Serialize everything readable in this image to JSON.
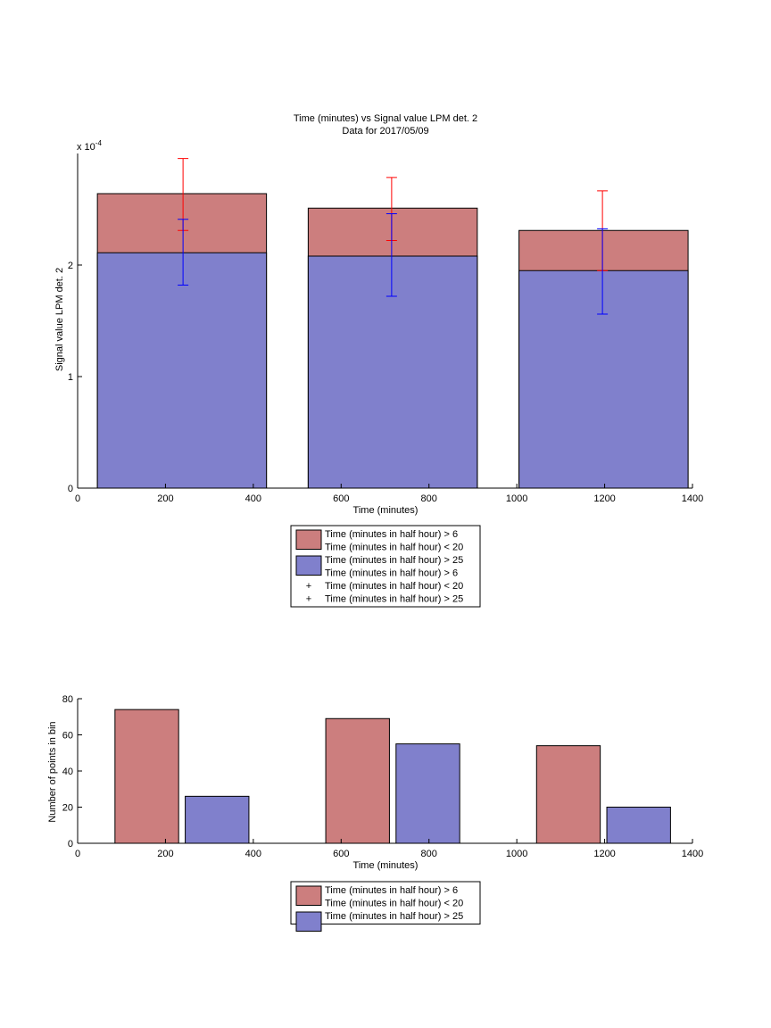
{
  "chart_data": [
    {
      "type": "bar",
      "title": "Time (minutes) vs Signal value LPM det. 2",
      "subtitle": "Data for 2017/05/09",
      "xlabel": "Time (minutes)",
      "ylabel": "Signal value LPM det. 2",
      "exponent_label": "x 10",
      "exponent_power": "-4",
      "xlim": [
        0,
        1400
      ],
      "ylim": [
        0,
        0.0003
      ],
      "xticks": [
        "0",
        "200",
        "400",
        "600",
        "800",
        "1000",
        "1200",
        "1400"
      ],
      "yticks": [
        "0",
        "1",
        "2"
      ],
      "bins": [
        {
          "x_start": 45,
          "x_end": 430
        },
        {
          "x_start": 525,
          "x_end": 910
        },
        {
          "x_start": 1005,
          "x_end": 1390
        }
      ],
      "series": [
        {
          "name": "Time (minutes in half hour) > 6\nTime (minutes in half hour) < 20",
          "color": "#cc7e7e",
          "values": [
            0.000264,
            0.000251,
            0.000231
          ],
          "error_x": [
            240,
            715,
            1195
          ],
          "error_center": [
            0.000231,
            0.000222,
            0.000195
          ],
          "error_plus": [
            6.45e-05,
            5.65e-05,
            7.15e-05
          ],
          "error_minus": [
            0,
            0,
            0
          ],
          "error_color": "#ff0000"
        },
        {
          "name": "Time (minutes in half hour) > 25",
          "color": "#8080cc",
          "values": [
            0.000211,
            0.000208,
            0.000195
          ],
          "error_x": [
            240,
            715,
            1195
          ],
          "error_center": [
            0.000211,
            0.000208,
            0.000195
          ],
          "error_plus": [
            3e-05,
            3.8e-05,
            3.75e-05
          ],
          "error_minus": [
            2.9e-05,
            3.6e-05,
            3.9e-05
          ],
          "error_color": "#0000ff"
        }
      ],
      "legend": [
        {
          "kind": "patch",
          "color": "#cc7e7e",
          "label": "Time (minutes in half hour) > 6"
        },
        {
          "kind": "none",
          "label": "Time (minutes in half hour) < 20"
        },
        {
          "kind": "patch",
          "color": "#8080cc",
          "label": "Time (minutes in half hour) > 25"
        },
        {
          "kind": "none",
          "label": "Time (minutes in half hour) > 6"
        },
        {
          "kind": "marker",
          "color": "#ff0000",
          "label": "Time (minutes in half hour) < 20"
        },
        {
          "kind": "marker",
          "color": "#0000ff",
          "label": "Time (minutes in half hour) > 25"
        }
      ],
      "legend_position": "below"
    },
    {
      "type": "bar",
      "xlabel": "Time (minutes)",
      "ylabel": "Number of points in bin",
      "xlim": [
        0,
        1400
      ],
      "ylim": [
        0,
        80
      ],
      "xticks": [
        "0",
        "200",
        "400",
        "600",
        "800",
        "1000",
        "1200",
        "1400"
      ],
      "yticks": [
        "0",
        "20",
        "40",
        "60",
        "80"
      ],
      "bars": [
        {
          "x_start": 85,
          "x_end": 230,
          "value": 74,
          "series": 0
        },
        {
          "x_start": 245,
          "x_end": 390,
          "value": 26,
          "series": 1
        },
        {
          "x_start": 565,
          "x_end": 710,
          "value": 69,
          "series": 0
        },
        {
          "x_start": 725,
          "x_end": 870,
          "value": 55,
          "series": 1
        },
        {
          "x_start": 1045,
          "x_end": 1190,
          "value": 54,
          "series": 0
        },
        {
          "x_start": 1205,
          "x_end": 1350,
          "value": 20,
          "series": 1
        }
      ],
      "series": [
        {
          "name": "Time (minutes in half hour) > 6\nTime (minutes in half hour) < 20",
          "color": "#cc7e7e",
          "values": [
            74,
            69,
            54
          ]
        },
        {
          "name": "Time (minutes in half hour) > 25",
          "color": "#8080cc",
          "values": [
            26,
            55,
            20
          ]
        }
      ],
      "legend": [
        {
          "kind": "patch",
          "color": "#cc7e7e",
          "label": "Time (minutes in half hour) > 6"
        },
        {
          "kind": "none",
          "label": "Time (minutes in half hour) < 20"
        },
        {
          "kind": "patch",
          "color": "#8080cc",
          "label": "Time (minutes in half hour) > 25"
        }
      ],
      "legend_position": "below"
    }
  ]
}
